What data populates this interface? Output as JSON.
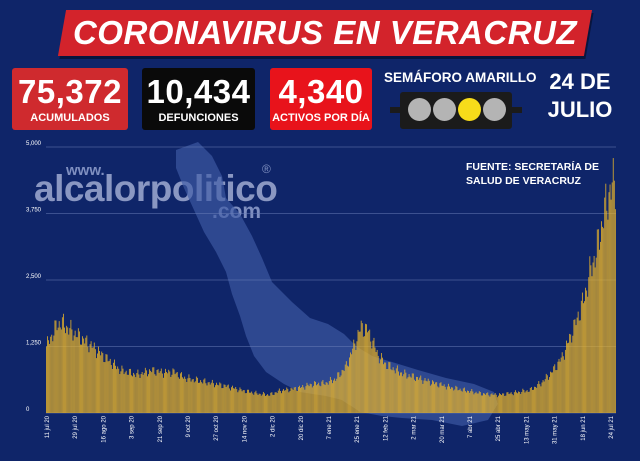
{
  "header": {
    "title": "CORONAVIRUS EN VERACRUZ"
  },
  "stats": {
    "acumulados": {
      "value": "75,372",
      "label": "ACUMULADOS"
    },
    "defunciones": {
      "value": "10,434",
      "label": "DEFUNCIONES"
    },
    "activos": {
      "value": "4,340",
      "label": "ACTIVOS POR DÍA"
    }
  },
  "semaforo": {
    "title": "SEMÁFORO AMARILLO",
    "lights": [
      "off",
      "off",
      "on",
      "off"
    ],
    "active_color": "#f7dc1a"
  },
  "date": {
    "line1": "24 DE",
    "line2": "JULIO"
  },
  "source": {
    "line1": "FUENTE: SECRETARÍA DE",
    "line2": "SALUD DE VERACRUZ"
  },
  "watermark": {
    "top": "www.",
    "main": "alcalorpolitico",
    "sub": ".com",
    "reg": "®"
  },
  "colors": {
    "background": "#0f2569",
    "bar": "#e8b42a",
    "banner": "#d3232b"
  },
  "chart_data": {
    "type": "bar",
    "title": "",
    "ylim": [
      0,
      5000
    ],
    "yticks": [
      0,
      1250,
      2500,
      3750,
      5000
    ],
    "ytick_labels": [
      "0",
      "1,250",
      "2,500",
      "3,750",
      "5,000"
    ],
    "xtick_labels": [
      "11 jul 20",
      "29 jul 20",
      "16 ago 20",
      "3 sep 20",
      "21 sep 20",
      "9 oct 20",
      "27 oct 20",
      "14 nov 20",
      "2 dic 20",
      "20 dic 20",
      "7 ene 21",
      "25 ene 21",
      "12 feb 21",
      "2 mar 21",
      "20 mar 21",
      "7 abr 21",
      "25 abr 21",
      "13 may 21",
      "31 may 21",
      "18 jun 21",
      "24 jul 21"
    ],
    "grid": true,
    "keypoints": [
      [
        0,
        1250
      ],
      [
        10,
        1650
      ],
      [
        14,
        1700
      ],
      [
        25,
        1520
      ],
      [
        40,
        1300
      ],
      [
        55,
        1050
      ],
      [
        70,
        800
      ],
      [
        85,
        720
      ],
      [
        100,
        800
      ],
      [
        110,
        760
      ],
      [
        120,
        770
      ],
      [
        130,
        660
      ],
      [
        140,
        620
      ],
      [
        155,
        560
      ],
      [
        170,
        500
      ],
      [
        185,
        420
      ],
      [
        200,
        360
      ],
      [
        210,
        340
      ],
      [
        220,
        420
      ],
      [
        235,
        460
      ],
      [
        250,
        540
      ],
      [
        262,
        560
      ],
      [
        272,
        640
      ],
      [
        282,
        880
      ],
      [
        290,
        1300
      ],
      [
        296,
        1620
      ],
      [
        302,
        1560
      ],
      [
        306,
        1380
      ],
      [
        312,
        1080
      ],
      [
        320,
        900
      ],
      [
        335,
        740
      ],
      [
        350,
        650
      ],
      [
        365,
        560
      ],
      [
        380,
        480
      ],
      [
        395,
        420
      ],
      [
        410,
        360
      ],
      [
        425,
        340
      ],
      [
        440,
        380
      ],
      [
        455,
        430
      ],
      [
        465,
        560
      ],
      [
        475,
        760
      ],
      [
        485,
        1050
      ],
      [
        495,
        1550
      ],
      [
        505,
        2100
      ],
      [
        512,
        2700
      ],
      [
        518,
        3100
      ],
      [
        524,
        3700
      ],
      [
        530,
        4200
      ],
      [
        535,
        4340
      ]
    ]
  }
}
